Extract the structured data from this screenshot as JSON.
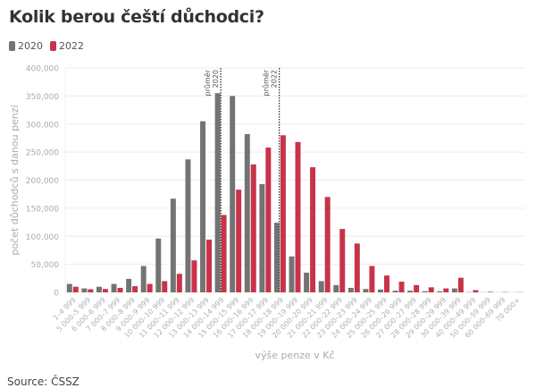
{
  "title": "Kolik berou čeští důchodci?",
  "legend": [
    {
      "label": "2020",
      "color": "#737373"
    },
    {
      "label": "2022",
      "color": "#c8334a"
    }
  ],
  "source": "Source: ČSSZ",
  "chart_data": {
    "type": "bar",
    "title": "Kolik berou čeští důchodci?",
    "xlabel": "výše penze v Kč",
    "ylabel": "počet důchodců s danou penzí",
    "ylim": [
      0,
      400000
    ],
    "yticks": [
      0,
      50000,
      100000,
      150000,
      200000,
      250000,
      300000,
      350000,
      400000
    ],
    "ytick_labels": [
      "0",
      "50,000",
      "100,000",
      "150,000",
      "200,000",
      "250,000",
      "300,000",
      "350,000",
      "400,000"
    ],
    "grid": true,
    "legend_position": "top-left",
    "categories": [
      "1–4 999",
      "5 000–5 999",
      "6 000–6 999",
      "7 000–7 999",
      "8 000–8 999",
      "9 000–9 999",
      "10 000–10 999",
      "11 000–11 999",
      "12 000–12 999",
      "13 000–13 999",
      "14 000–14 999",
      "15 000–15 999",
      "16 000–16 999",
      "17 000–17 999",
      "18 000–18 999",
      "19 000–19 999",
      "20 000–20 999",
      "21 000–21 999",
      "22 000–22 999",
      "23 000–23 999",
      "24 000–24 999",
      "25 000–25 999",
      "26 000–26 999",
      "27 000–27 999",
      "28 000–28 999",
      "29 000–29 999",
      "30 000–39 999",
      "40 000–49 999",
      "50 000–59 999",
      "60 000–69 999",
      "70 000+"
    ],
    "series": [
      {
        "name": "2020",
        "color": "#737373",
        "values": [
          15000,
          7000,
          10000,
          15000,
          24000,
          47000,
          96000,
          167000,
          237000,
          305000,
          355000,
          350000,
          282000,
          193000,
          124000,
          64000,
          35000,
          20000,
          13000,
          8000,
          6000,
          5000,
          3000,
          3000,
          2000,
          2000,
          7000,
          500,
          200,
          100,
          100
        ]
      },
      {
        "name": "2022",
        "color": "#c8334a",
        "values": [
          10000,
          5500,
          6000,
          8000,
          11000,
          15000,
          20000,
          33000,
          57000,
          94000,
          138000,
          183000,
          228000,
          258000,
          280000,
          268000,
          223000,
          170000,
          113000,
          87000,
          47000,
          30000,
          19000,
          13000,
          9000,
          7000,
          26000,
          4000,
          1000,
          500,
          300
        ]
      }
    ],
    "annotations": [
      {
        "text": "průměr 2020",
        "position_category_index": 10.5,
        "style": "dotted vertical line"
      },
      {
        "text": "průměr 2022",
        "position_category_index": 14.45,
        "style": "dotted vertical line"
      }
    ]
  }
}
